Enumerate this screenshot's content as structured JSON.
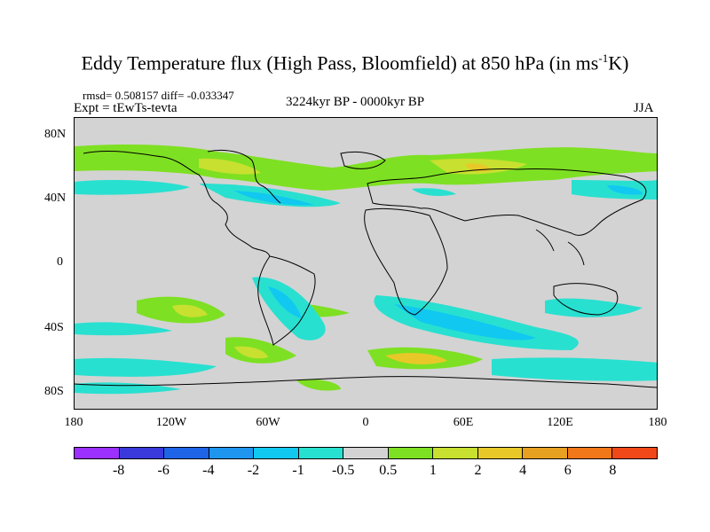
{
  "title": {
    "main": "Eddy Temperature flux (High Pass, Bloomfield) at 850 hPa (in ms",
    "sup": "-1",
    "end": "K)"
  },
  "stats": "rmsd= 0.508157  diff= -0.033347",
  "expt": "Expt = tEwTs-tevta",
  "period": "3224kyr BP - 0000kyr BP",
  "season": "JJA",
  "lat_labels": [
    "80N",
    "40N",
    "0",
    "40S",
    "80S"
  ],
  "lon_labels": [
    "180",
    "120W",
    "60W",
    "0",
    "60E",
    "120E",
    "180"
  ],
  "colorbar": {
    "colors": [
      "#9b30ff",
      "#3a3adc",
      "#1e64e6",
      "#1e96f0",
      "#10c8f0",
      "#28e0d0",
      "#d3d3d3",
      "#7ee022",
      "#c8e030",
      "#e8c828",
      "#e8a020",
      "#f07818",
      "#f04818"
    ],
    "labels": [
      "-8",
      "-6",
      "-4",
      "-2",
      "-1",
      "-0.5",
      "0.5",
      "1",
      "2",
      "4",
      "6",
      "8"
    ]
  },
  "palette": {
    "land_outline": "#000000",
    "neutral": "#d3d3d3"
  }
}
